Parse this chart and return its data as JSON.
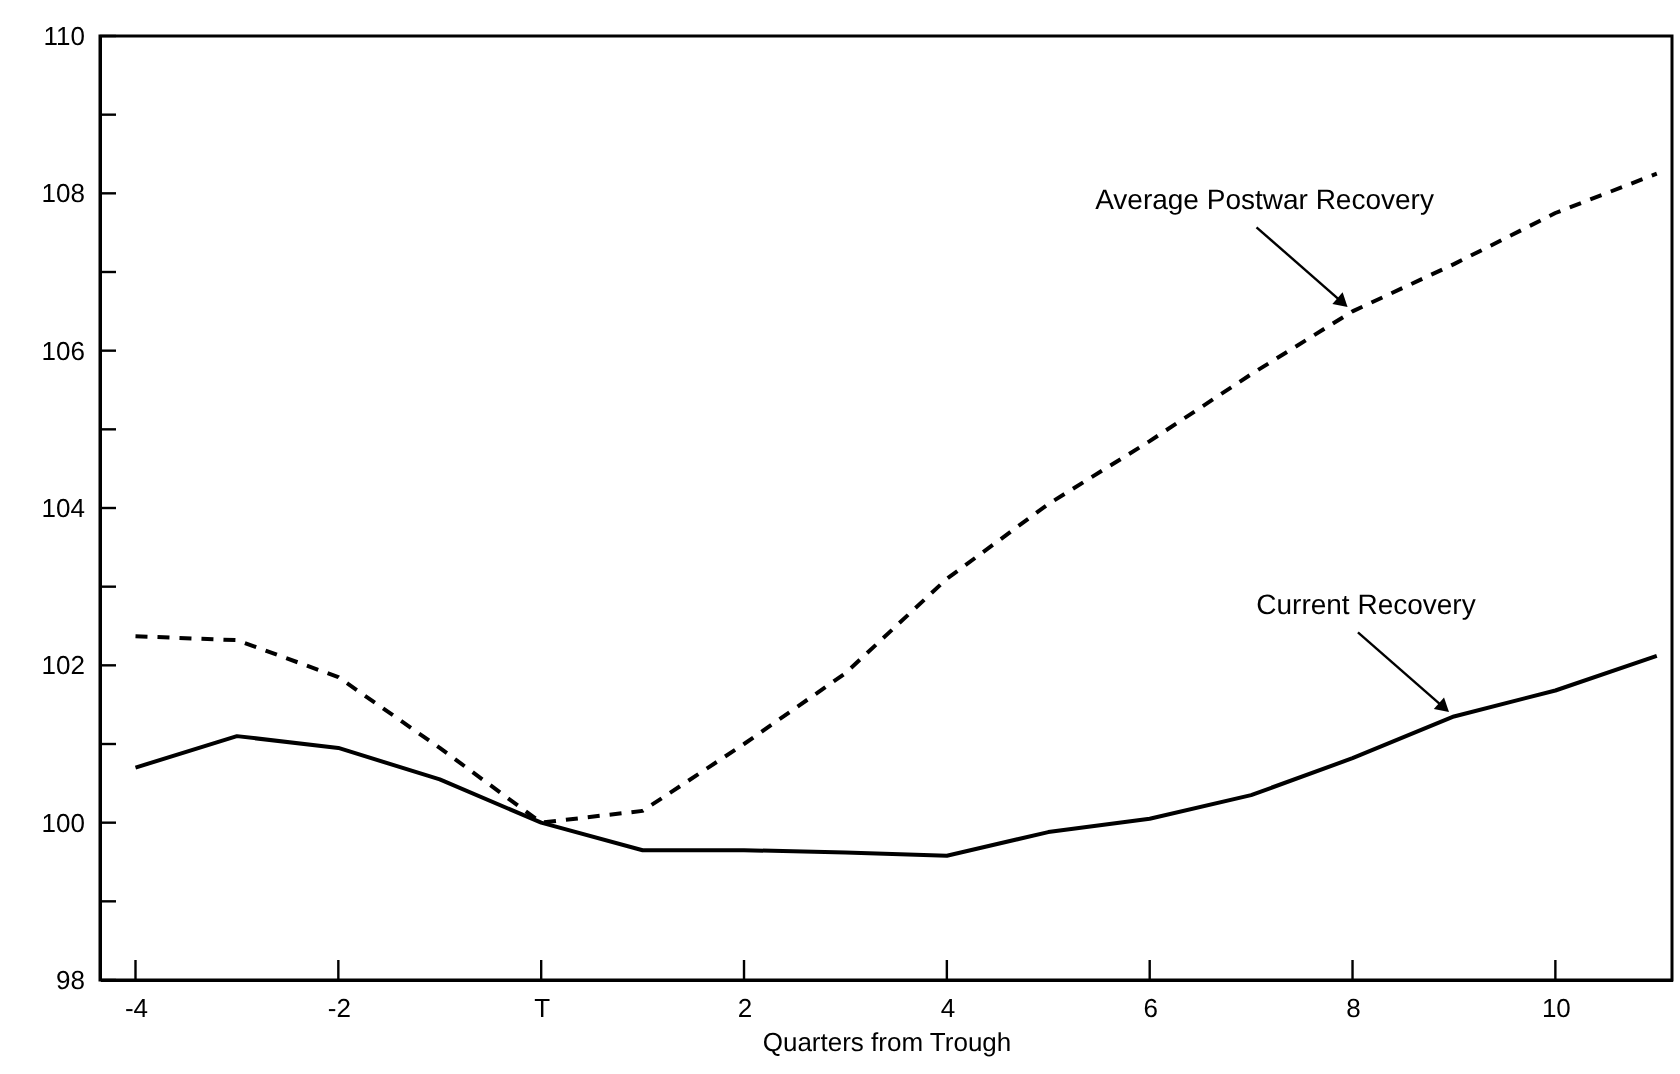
{
  "chart_data": {
    "type": "line",
    "xlabel": "Quarters from Trough",
    "x": [
      -4,
      -3,
      -2,
      -1,
      0,
      1,
      2,
      3,
      4,
      5,
      6,
      7,
      8,
      9,
      10,
      11
    ],
    "series": [
      {
        "name": "Average Postwar Recovery",
        "color": "#000000",
        "line_style": "dashed",
        "values": [
          102.37,
          102.32,
          101.85,
          100.95,
          100.0,
          100.15,
          101.0,
          101.9,
          103.1,
          104.05,
          104.85,
          105.7,
          106.5,
          107.1,
          107.75,
          108.25
        ]
      },
      {
        "name": "Current Recovery",
        "color": "#000000",
        "line_style": "solid",
        "values": [
          100.7,
          101.1,
          100.95,
          100.55,
          100.0,
          99.65,
          99.65,
          99.62,
          99.58,
          99.88,
          100.05,
          100.35,
          100.82,
          101.35,
          101.68,
          102.12
        ]
      }
    ],
    "xlim": [
      -4.35,
      11.15
    ],
    "ylim": [
      98,
      110
    ],
    "xticks": [
      -4,
      -2,
      {
        "value": 0,
        "label": "T"
      },
      2,
      4,
      6,
      8,
      10
    ],
    "yticks": [
      98,
      {
        "value": 99,
        "label": null
      },
      100,
      {
        "value": 101,
        "label": null
      },
      102,
      {
        "value": 103,
        "label": null
      },
      104,
      {
        "value": 105,
        "label": null
      },
      106,
      {
        "value": 107,
        "label": null
      },
      108,
      {
        "value": 109,
        "label": null
      },
      110
    ],
    "grid": false,
    "marker": "none"
  }
}
